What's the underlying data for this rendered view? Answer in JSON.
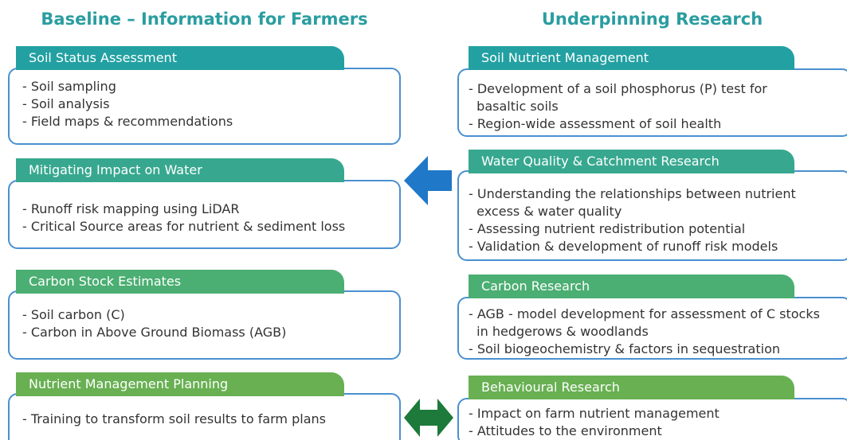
{
  "headings": {
    "left": "Baseline – Information for Farmers",
    "right": "Underpinning Research"
  },
  "left": [
    {
      "title": "Soil Status Assessment",
      "lines": [
        "- Soil sampling",
        "- Soil analysis",
        "- Field maps & recommendations"
      ]
    },
    {
      "title": "Mitigating Impact on Water",
      "lines": [
        "- Runoff risk mapping using LiDAR",
        "- Critical Source areas for nutrient & sediment loss"
      ]
    },
    {
      "title": "Carbon Stock Estimates",
      "lines": [
        "- Soil carbon (C)",
        "- Carbon in Above Ground Biomass (AGB)"
      ]
    },
    {
      "title": "Nutrient Management Planning",
      "lines": [
        "- Training to transform soil results to farm plans"
      ]
    }
  ],
  "right": [
    {
      "title": "Soil  Nutrient Management",
      "lines": [
        "- Development of a soil phosphorus (P) test for",
        "  basaltic soils",
        "- Region-wide assessment of soil health"
      ]
    },
    {
      "title": "Water Quality & Catchment Research",
      "lines": [
        "- Understanding the relationships between nutrient",
        "  excess & water quality",
        "- Assessing nutrient redistribution potential",
        "- Validation & development of runoff risk models"
      ]
    },
    {
      "title": "Carbon Research",
      "lines": [
        "- AGB - model development for assessment of C stocks",
        "  in hedgerows & woodlands",
        "- Soil biogeochemistry & factors in sequestration"
      ]
    },
    {
      "title": "Behavioural Research",
      "lines": [
        "- Impact on farm nutrient management",
        "- Attitudes to the environment"
      ]
    }
  ]
}
